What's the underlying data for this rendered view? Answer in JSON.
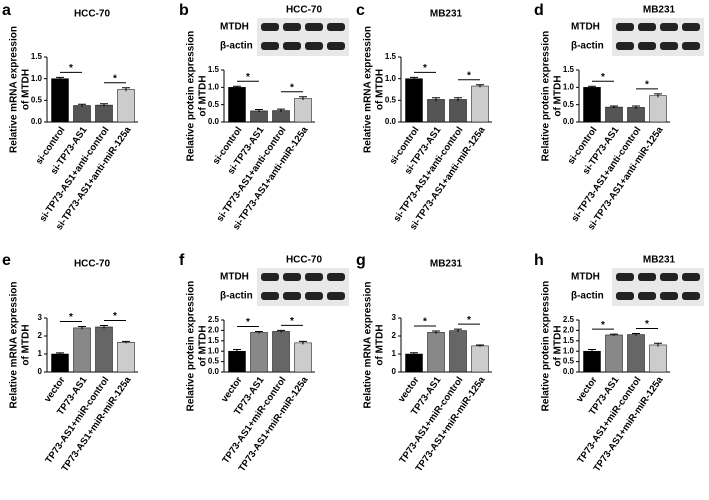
{
  "chart_data": [
    {
      "type": "bar",
      "label": "a",
      "title": "HCC-70",
      "y_label": [
        "Relative mRNA expression",
        "of MTDH"
      ],
      "categories": [
        "si-control",
        "si-TP73-AS1",
        "si-TP73-AS1+anti-control",
        "si-TP73-AS1+anti-miR-125a"
      ],
      "values": [
        1.0,
        0.38,
        0.39,
        0.75
      ],
      "errors": [
        0.03,
        0.03,
        0.03,
        0.04
      ],
      "colors": [
        "#000000",
        "#555555",
        "#555555",
        "#cccccc"
      ],
      "ylim": [
        0,
        1.5
      ],
      "yticks": [
        {
          "value": 0,
          "label": "0.0"
        },
        0.5,
        {
          "value": 1,
          "label": "1.0"
        },
        1.5
      ],
      "annotations": [
        "*",
        "*"
      ]
    },
    {
      "type": "bar",
      "label": "b",
      "title": "HCC-70",
      "blot_labels": [
        "MTDH",
        "β-actin"
      ],
      "y_label": [
        "Relative protein expression",
        "of MTDH"
      ],
      "categories": [
        "si-control",
        "si-TP73-AS1",
        "si-TP73-AS1+anti-control",
        "si-TP73-AS1+anti-miR-125a"
      ],
      "values": [
        1.0,
        0.32,
        0.33,
        0.68
      ],
      "errors": [
        0.03,
        0.04,
        0.04,
        0.05
      ],
      "colors": [
        "#000000",
        "#555555",
        "#555555",
        "#cccccc"
      ],
      "ylim": [
        0,
        1.5
      ],
      "yticks": [
        {
          "value": 0,
          "label": "0.0"
        },
        0.5,
        {
          "value": 1,
          "label": "1.0"
        },
        1.5
      ],
      "annotations": [
        "*",
        "*"
      ]
    },
    {
      "type": "bar",
      "label": "c",
      "title": "MB231",
      "y_label": [
        "Relative mRNA expression",
        "of MTDH"
      ],
      "categories": [
        "si-control",
        "si-TP73-AS1",
        "si-TP73-AS1+anti-control",
        "si-TP73-AS1+anti-miR-125a"
      ],
      "values": [
        1.0,
        0.52,
        0.52,
        0.83
      ],
      "errors": [
        0.03,
        0.04,
        0.04,
        0.03
      ],
      "colors": [
        "#000000",
        "#555555",
        "#555555",
        "#cccccc"
      ],
      "ylim": [
        0,
        1.5
      ],
      "yticks": [
        {
          "value": 0,
          "label": "0.0"
        },
        0.5,
        {
          "value": 1,
          "label": "1.0"
        },
        1.5
      ],
      "annotations": [
        "*",
        "*"
      ]
    },
    {
      "type": "bar",
      "label": "d",
      "title": "MB231",
      "blot_labels": [
        "MTDH",
        "β-actin"
      ],
      "y_label": [
        "Relative protein expression",
        "of MTDH"
      ],
      "categories": [
        "si-control",
        "si-TP73-AS1",
        "si-TP73-AS1+anti-control",
        "si-TP73-AS1+anti-miR-125a"
      ],
      "values": [
        1.0,
        0.43,
        0.42,
        0.76
      ],
      "errors": [
        0.03,
        0.03,
        0.04,
        0.05
      ],
      "colors": [
        "#000000",
        "#555555",
        "#555555",
        "#cccccc"
      ],
      "ylim": [
        0,
        1.5
      ],
      "yticks": [
        {
          "value": 0,
          "label": "0.0"
        },
        0.5,
        {
          "value": 1,
          "label": "1.0"
        },
        1.5
      ],
      "annotations": [
        "*",
        "*"
      ]
    },
    {
      "type": "bar",
      "label": "e",
      "title": "HCC-70",
      "y_label": [
        "Relative mRNA expression",
        "of MTDH"
      ],
      "categories": [
        "vector",
        "TP73-AS1",
        "TP73-AS1+miR-control",
        "TP73-AS1+miR-miR-125a"
      ],
      "values": [
        1.0,
        2.45,
        2.5,
        1.65
      ],
      "errors": [
        0.06,
        0.08,
        0.08,
        0.05
      ],
      "colors": [
        "#000000",
        "#888888",
        "#666666",
        "#cccccc"
      ],
      "ylim": [
        0,
        3
      ],
      "yticks": [
        0,
        1,
        2,
        3
      ],
      "annotations": [
        "*",
        "*"
      ]
    },
    {
      "type": "bar",
      "label": "f",
      "title": "HCC-70",
      "blot_labels": [
        "MTDH",
        "β-actin"
      ],
      "y_label": [
        "Relative protein expression",
        "of MTDH"
      ],
      "categories": [
        "vector",
        "TP73-AS1",
        "TP73-AS1+miR-control",
        "TP73-AS1+miR-miR-125a"
      ],
      "values": [
        1.0,
        1.9,
        1.95,
        1.4
      ],
      "errors": [
        0.08,
        0.05,
        0.05,
        0.07
      ],
      "colors": [
        "#000000",
        "#888888",
        "#666666",
        "#cccccc"
      ],
      "ylim": [
        0,
        2.5
      ],
      "yticks": [
        {
          "value": 0,
          "label": "0.0"
        },
        0.5,
        {
          "value": 1,
          "label": "1.0"
        },
        1.5,
        {
          "value": 2,
          "label": "2.0"
        },
        2.5
      ],
      "annotations": [
        "*",
        "*"
      ]
    },
    {
      "type": "bar",
      "label": "g",
      "title": "MB231",
      "y_label": [
        "Relative mRNA expression",
        "of MTDH"
      ],
      "categories": [
        "vector",
        "TP73-AS1",
        "TP73-AS1+miR-control",
        "TP73-AS1+miR-miR-125a"
      ],
      "values": [
        1.0,
        2.2,
        2.3,
        1.45
      ],
      "errors": [
        0.07,
        0.08,
        0.08,
        0.05
      ],
      "colors": [
        "#000000",
        "#888888",
        "#666666",
        "#cccccc"
      ],
      "ylim": [
        0,
        3
      ],
      "yticks": [
        0,
        1,
        2,
        3
      ],
      "annotations": [
        "*",
        "*"
      ]
    },
    {
      "type": "bar",
      "label": "h",
      "title": "MB231",
      "blot_labels": [
        "MTDH",
        "β-actin"
      ],
      "y_label": [
        "Relative protein expression",
        "of MTDH"
      ],
      "categories": [
        "vector",
        "TP73-AS1",
        "TP73-AS1+miR-control",
        "TP73-AS1+miR-miR-125a"
      ],
      "values": [
        1.0,
        1.78,
        1.8,
        1.3
      ],
      "errors": [
        0.08,
        0.04,
        0.05,
        0.08
      ],
      "colors": [
        "#000000",
        "#888888",
        "#666666",
        "#cccccc"
      ],
      "ylim": [
        0,
        2.5
      ],
      "yticks": [
        {
          "value": 0,
          "label": "0.0"
        },
        0.5,
        {
          "value": 1,
          "label": "1.0"
        },
        1.5,
        {
          "value": 2,
          "label": "2.0"
        },
        2.5
      ],
      "annotations": [
        "*",
        "*"
      ]
    }
  ]
}
